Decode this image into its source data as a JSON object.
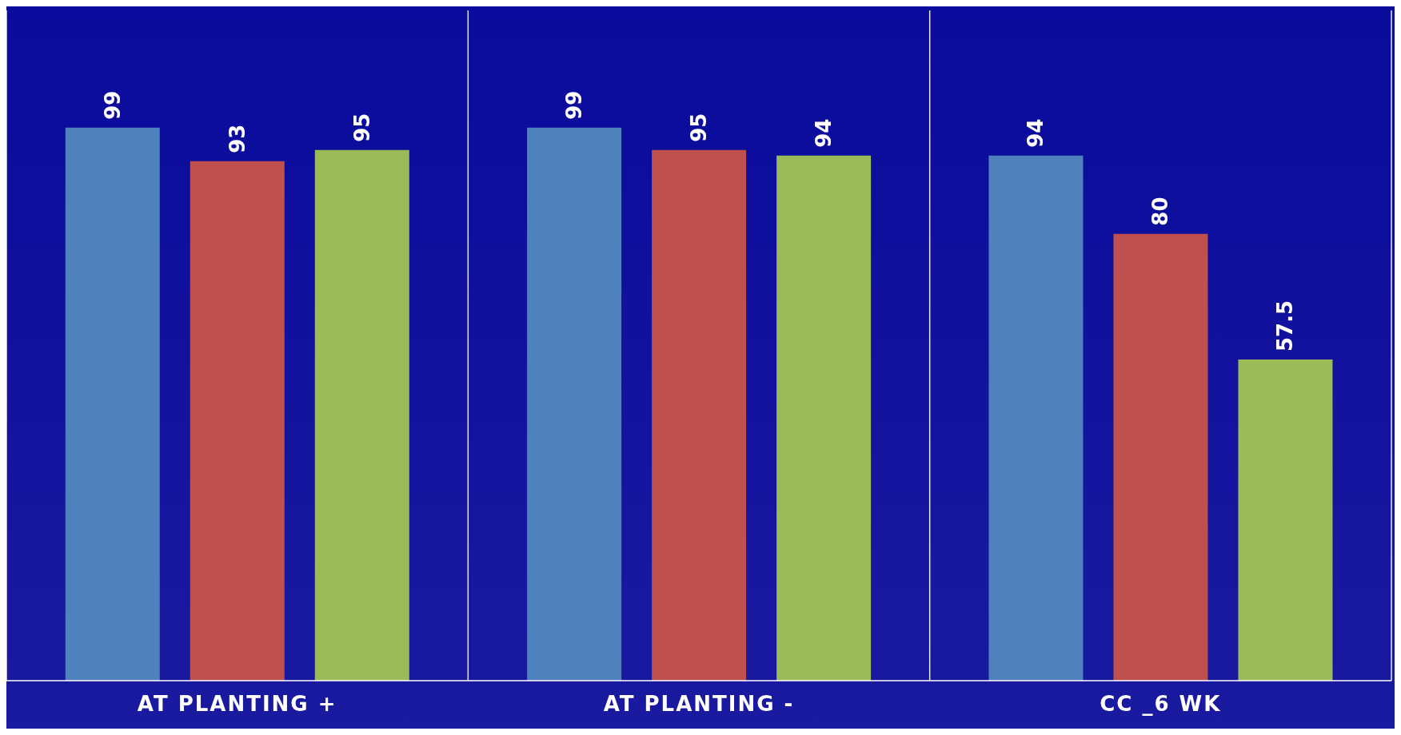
{
  "chart_data": {
    "type": "bar",
    "categories": [
      "AT PLANTING +",
      "AT PLANTING -",
      "CC _6 WK"
    ],
    "series": [
      {
        "color": "#4f81bd",
        "values": [
          99,
          99,
          94
        ]
      },
      {
        "color": "#c0504d",
        "values": [
          93,
          95,
          80
        ]
      },
      {
        "color": "#9bbb59",
        "values": [
          95,
          94,
          57.5
        ]
      }
    ],
    "ylim": [
      0,
      120
    ],
    "data_labels": true,
    "grid": "x",
    "legend": false
  }
}
